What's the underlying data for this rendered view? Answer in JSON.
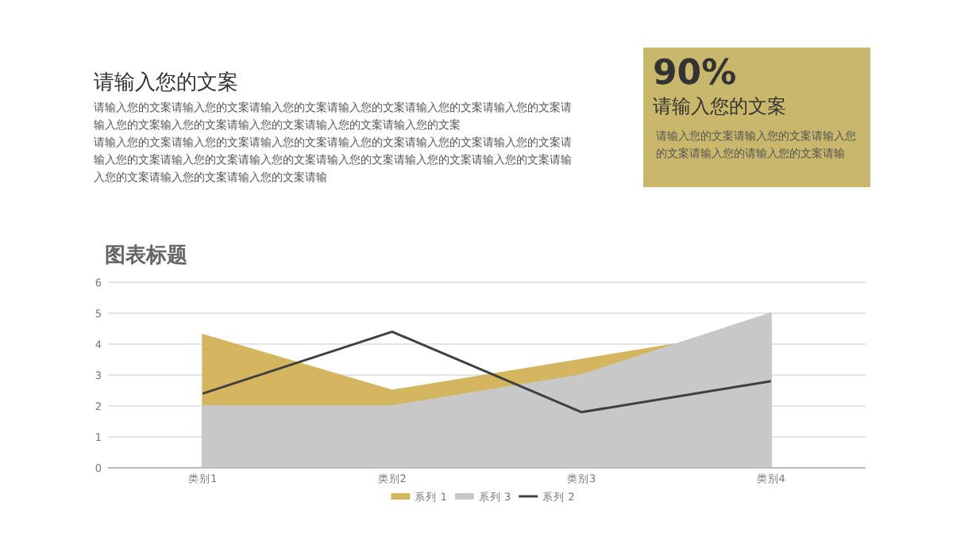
{
  "chart_data": [
    {
      "type": "other",
      "title": "请输入您的文案",
      "annotations": [
        "请输入您的文案请输入您的文案请输入您的文案请输入您的文案请输入您的文案请输入您的文案请输入您的文案输入您的文案请输入您的文案请输入您的文案请输入您的文案",
        "请输入您的文案请输入您的文案请输入您的文案请输入您的文案请输入您的文案请输入您的文案请输入您的文案请输入您的文案请输入您的文案请输入您的文案请输入您的文案请输入您的文案请输入您的文案请输入您的文案请输入您的文案请输"
      ]
    },
    {
      "type": "other",
      "title": "90%",
      "subtitle": "请输入您的文案",
      "annotations": [
        "请输入您的文案请输入您的文案请输入您的文案请输入您的请输入您的文案请输"
      ]
    },
    {
      "type": "area",
      "title": "图表标题",
      "categories": [
        "类别1",
        "类别2",
        "类别3",
        "类别4"
      ],
      "series": [
        {
          "name": "系列 1",
          "color": "#d4b660",
          "values": [
            4.3,
            2.5,
            3.5,
            4.5
          ]
        },
        {
          "name": "系列 3",
          "color": "#c8c8c8",
          "values": [
            2,
            2,
            3,
            5
          ]
        },
        {
          "name": "系列 2",
          "type": "line",
          "color": "#404040",
          "values": [
            2.4,
            4.4,
            1.8,
            2.8
          ]
        }
      ],
      "ylim": [
        0,
        6
      ],
      "yticks": [
        0,
        1,
        2,
        3,
        4,
        5,
        6
      ],
      "grid": "y",
      "legend": "bottom"
    }
  ]
}
